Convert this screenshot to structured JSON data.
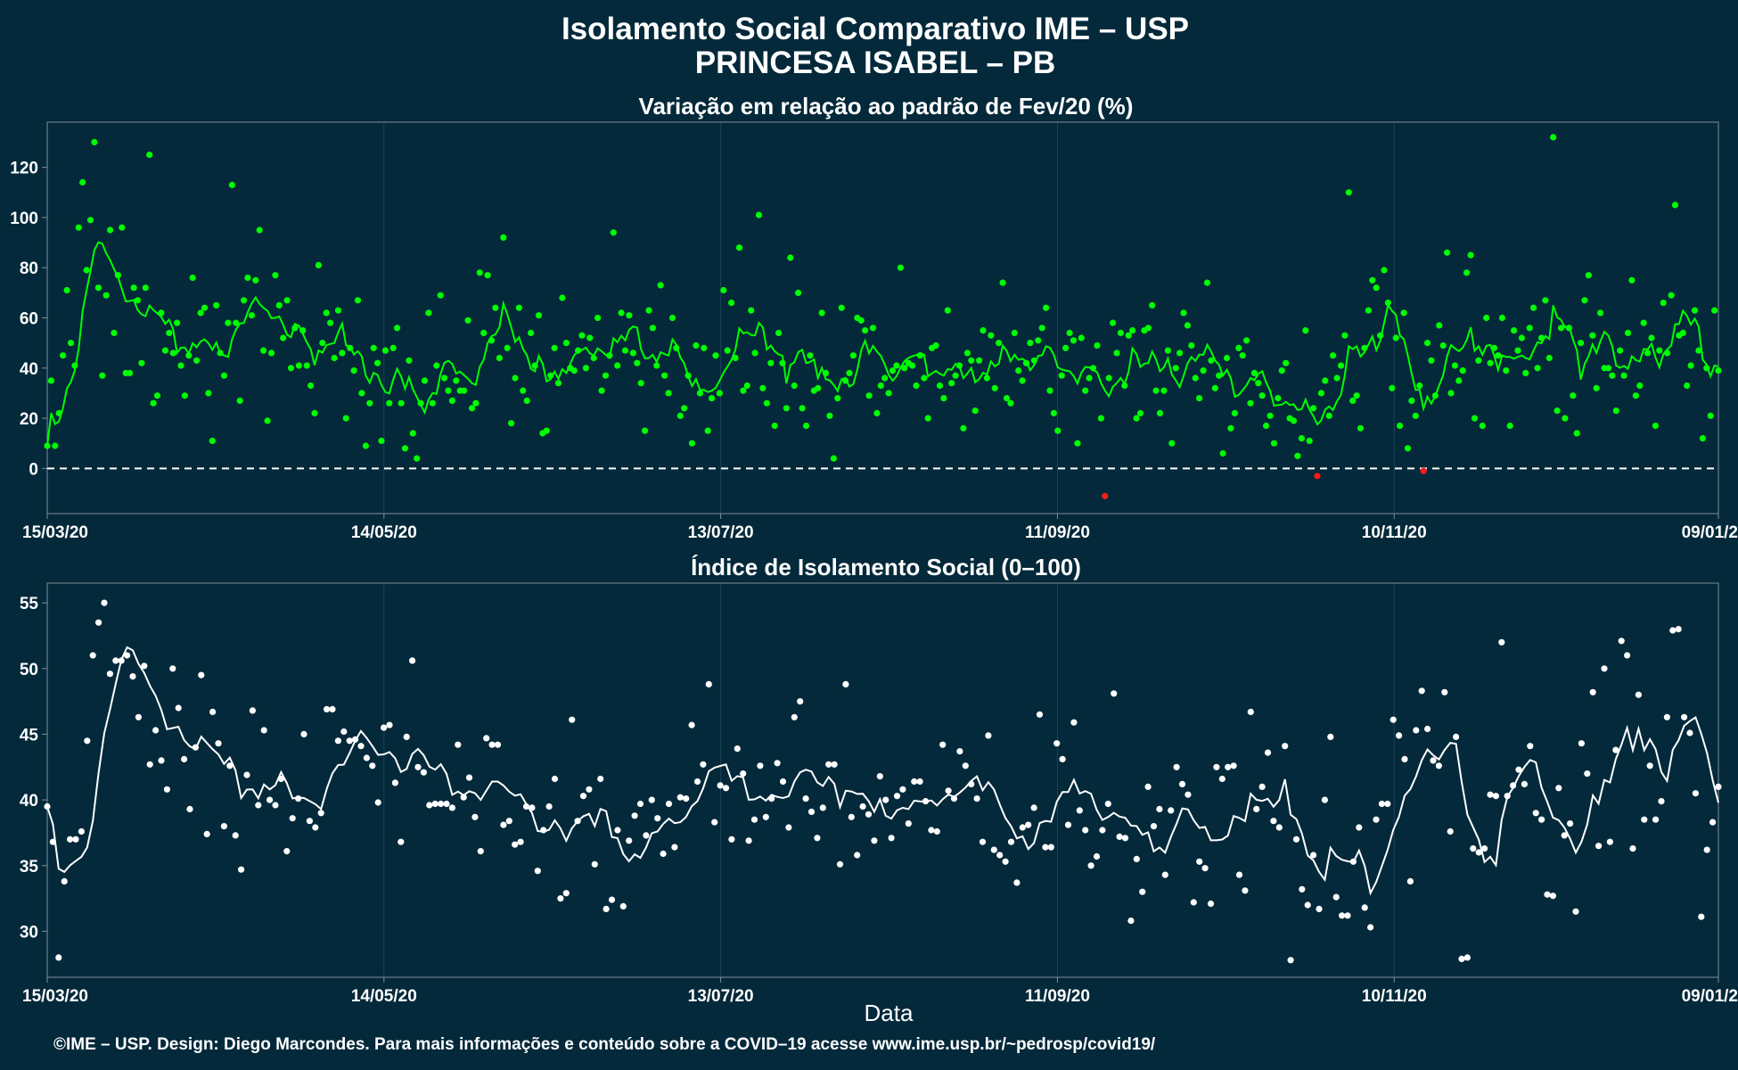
{
  "title_line1": "Isolamento Social Comparativo IME – USP",
  "title_line2": "PRINCESA ISABEL – PB",
  "footer": "©IME – USP. Design: Diego Marcondes. Para mais informações e conteúdo sobre a COVID–19 acesse www.ime.usp.br/~pedrosp/covid19/",
  "xlabel": "Data",
  "colors": {
    "background": "#03293a",
    "panel_border": "#7f8f99",
    "grid": "#1d4356",
    "series_top": "#00ff00",
    "series_top_negative": "#ff1a1a",
    "series_bottom": "#ffffff",
    "reference_line": "#ffffff"
  },
  "chart_data": [
    {
      "type": "scatter",
      "title": "Variação em relação ao padrão de Fev/20 (%)",
      "xlabel": "",
      "ylabel": "",
      "x_range": [
        "2020-03-15",
        "2021-01-09"
      ],
      "x_ticks": [
        "15/03/20",
        "14/05/20",
        "13/07/20",
        "11/09/20",
        "10/11/20",
        "09/01/2"
      ],
      "ylim": [
        -18,
        138
      ],
      "y_ticks": [
        0,
        20,
        40,
        60,
        80,
        100,
        120
      ],
      "reference_line_y": 0,
      "grid": true,
      "series": [
        {
          "values": [
            9,
            35,
            9,
            22,
            45,
            71,
            50,
            41,
            96,
            114,
            79,
            99,
            130,
            72,
            37,
            69,
            95,
            54,
            77,
            96,
            38,
            38,
            72,
            67,
            42,
            72,
            125,
            26,
            29,
            62,
            47,
            54,
            46,
            58,
            41,
            29,
            45,
            76,
            43,
            62,
            64,
            30,
            11,
            65,
            46,
            37,
            58,
            113,
            58,
            27,
            67,
            76,
            61,
            75,
            95,
            47,
            19,
            46,
            77,
            65,
            52,
            67,
            40,
            56,
            41,
            55,
            41,
            33,
            22,
            81,
            50,
            62,
            58,
            44,
            63,
            46,
            20,
            48,
            39,
            67,
            30,
            9,
            26,
            48,
            42,
            11,
            47,
            26,
            48,
            56,
            26,
            8,
            43,
            14,
            4,
            26,
            35,
            62,
            26,
            41,
            69,
            36,
            31,
            27,
            35,
            31,
            31,
            59,
            24,
            26,
            78,
            54,
            77,
            51,
            64,
            44,
            92,
            48,
            18,
            36,
            64,
            31,
            27,
            54,
            41,
            61,
            14,
            15,
            37,
            48,
            34,
            68,
            50,
            40,
            39,
            47,
            53,
            40,
            52,
            44,
            60,
            31,
            37,
            45,
            94,
            41,
            62,
            47,
            61,
            46,
            42,
            34,
            15,
            63,
            56,
            41,
            73,
            37,
            30,
            60,
            48,
            21,
            24,
            37,
            10,
            49,
            30,
            48,
            15,
            28,
            45,
            30,
            71,
            47,
            66,
            44,
            88,
            31,
            33,
            63,
            46,
            101,
            32,
            26,
            42,
            17,
            54,
            42,
            24,
            84,
            33,
            70,
            24,
            17,
            45,
            31,
            32,
            62,
            38,
            21,
            4,
            28,
            64,
            35,
            38,
            45,
            60,
            59,
            55,
            29,
            56,
            22,
            33,
            36,
            30,
            39,
            41,
            80,
            40,
            42,
            41,
            33,
            45,
            36,
            20,
            48,
            49,
            33,
            28,
            63,
            34,
            37,
            41,
            16,
            46,
            43,
            23,
            43,
            55,
            36,
            53,
            32,
            50,
            74,
            28,
            26,
            54,
            39,
            35,
            42,
            50,
            43,
            51,
            56,
            64,
            31,
            22,
            15,
            37,
            48,
            54,
            51,
            10,
            52,
            31,
            36,
            40,
            49,
            20,
            -11,
            36,
            58,
            46,
            54,
            33,
            53,
            55,
            20,
            22,
            55,
            56,
            65,
            31,
            22,
            31,
            47,
            10,
            40,
            46,
            62,
            57,
            49,
            36,
            28,
            39,
            74,
            43,
            32,
            37,
            6,
            44,
            16,
            22,
            48,
            45,
            51,
            26,
            38,
            34,
            29,
            17,
            21,
            10,
            28,
            39,
            42,
            20,
            19,
            5,
            12,
            55,
            11,
            24,
            -3,
            30,
            35,
            21,
            45,
            36,
            41,
            53,
            110,
            27,
            29,
            16,
            48,
            63,
            75,
            72,
            53,
            79,
            66,
            32,
            52,
            17,
            62,
            8,
            27,
            21,
            33,
            -1,
            50,
            43,
            29,
            57,
            49,
            86,
            30,
            41,
            35,
            39,
            78,
            85,
            20,
            43,
            17,
            60,
            42,
            48,
            45,
            60,
            39,
            17,
            55,
            47,
            52,
            38,
            56,
            64,
            40,
            52,
            67,
            44,
            132,
            23,
            56,
            20,
            56,
            29,
            14,
            50,
            67,
            77,
            53,
            32,
            62,
            40,
            40,
            37,
            23,
            47,
            37,
            54,
            75,
            29,
            33,
            58,
            46,
            52,
            17,
            47,
            66,
            46,
            69,
            105,
            53,
            54,
            33,
            41,
            63,
            47,
            12,
            40,
            21,
            63,
            39
          ]
        }
      ]
    },
    {
      "type": "scatter",
      "title": "Índice de Isolamento Social (0–100)",
      "xlabel": "Data",
      "ylabel": "",
      "x_range": [
        "2020-03-15",
        "2021-01-09"
      ],
      "x_ticks": [
        "15/03/20",
        "14/05/20",
        "13/07/20",
        "11/09/20",
        "10/11/20",
        "09/01/2"
      ],
      "ylim": [
        26.5,
        56.5
      ],
      "y_ticks": [
        30,
        35,
        40,
        45,
        50,
        55
      ],
      "grid": true,
      "series": [
        {
          "values": [
            39.5,
            36.8,
            28.0,
            33.8,
            37.0,
            37.0,
            37.6,
            44.5,
            51.0,
            53.5,
            55.0,
            49.6,
            50.6,
            50.6,
            51.0,
            49.4,
            46.3,
            50.2,
            42.7,
            45.3,
            43.0,
            40.8,
            50.0,
            47.0,
            43.1,
            39.3,
            44.0,
            49.5,
            37.4,
            46.7,
            44.3,
            38.0,
            42.6,
            37.3,
            34.7,
            41.9,
            46.8,
            39.6,
            45.3,
            40.0,
            39.6,
            41.6,
            36.1,
            38.6,
            40.1,
            45.0,
            38.4,
            37.9,
            39.0,
            46.9,
            46.9,
            44.5,
            45.2,
            44.5,
            44.6,
            44.1,
            43.2,
            42.6,
            39.8,
            45.5,
            45.7,
            41.3,
            36.8,
            44.8,
            50.6,
            42.5,
            42.1,
            39.6,
            39.7,
            39.7,
            39.7,
            39.4,
            44.2,
            40.2,
            41.7,
            38.7,
            36.1,
            44.7,
            44.2,
            44.2,
            38.1,
            38.4,
            36.6,
            36.8,
            39.5,
            39.4,
            34.6,
            37.7,
            39.5,
            41.6,
            32.5,
            32.9,
            46.1,
            38.4,
            40.3,
            40.8,
            35.1,
            41.6,
            31.7,
            32.4,
            37.7,
            31.9,
            36.9,
            38.8,
            39.7,
            37.3,
            40.0,
            38.6,
            35.9,
            39.7,
            36.4,
            40.2,
            40.1,
            45.7,
            41.4,
            42.7,
            48.8,
            38.3,
            41.1,
            40.9,
            37.0,
            43.9,
            42.0,
            36.9,
            38.5,
            42.6,
            38.7,
            40.1,
            42.8,
            41.4,
            37.9,
            46.3,
            47.5,
            40.1,
            39.1,
            37.1,
            39.4,
            42.7,
            42.7,
            35.1,
            48.8,
            38.7,
            35.8,
            39.5,
            38.9,
            36.9,
            41.8,
            40.0,
            37.1,
            40.3,
            40.8,
            38.2,
            41.4,
            41.4,
            39.9,
            37.7,
            37.6,
            44.2,
            40.7,
            40.1,
            43.7,
            42.6,
            41.2,
            40.1,
            36.8,
            44.9,
            36.2,
            35.8,
            35.3,
            36.8,
            33.7,
            37.9,
            38.1,
            39.4,
            46.5,
            36.4,
            36.4,
            44.3,
            43.1,
            38.1,
            45.9,
            39.2,
            37.7,
            35.0,
            35.7,
            37.7,
            39.7,
            48.1,
            37.2,
            37.1,
            30.8,
            35.5,
            33.0,
            41.0,
            38.0,
            39.3,
            34.3,
            39.2,
            42.5,
            41.2,
            40.4,
            32.2,
            35.3,
            34.8,
            32.1,
            42.5,
            41.6,
            42.5,
            42.6,
            34.3,
            33.1,
            46.7,
            39.3,
            41.0,
            43.6,
            38.4,
            37.9,
            44.1,
            27.8,
            37.0,
            33.2,
            32.0,
            35.8,
            31.7,
            40.0,
            44.8,
            32.6,
            31.2,
            31.2,
            35.3,
            37.9,
            31.8,
            30.3,
            38.5,
            39.7,
            39.7,
            46.1,
            44.9,
            43.1,
            33.8,
            45.3,
            48.3,
            45.4,
            43.0,
            42.6,
            48.2,
            37.6,
            44.8,
            27.9,
            28.0,
            36.3,
            36.0,
            36.3,
            40.4,
            40.3,
            52.0,
            40.3,
            41.1,
            42.3,
            41.2,
            44.1,
            39.0,
            38.5,
            32.8,
            32.7,
            40.9,
            37.3,
            38.2,
            31.5,
            44.3,
            42.0,
            48.2,
            36.5,
            50.0,
            36.8,
            43.8,
            52.1,
            51.0,
            36.3,
            48.0,
            38.5,
            42.6,
            38.5,
            39.9,
            46.3,
            52.9,
            53.0,
            46.3,
            45.1,
            40.5,
            31.1,
            36.2,
            38.3,
            41.0
          ]
        }
      ]
    }
  ]
}
